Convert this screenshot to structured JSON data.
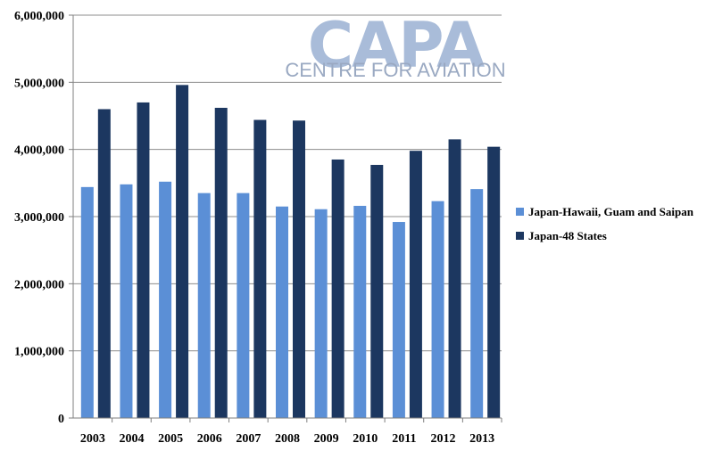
{
  "logo": {
    "main": "CAPA",
    "sub": "CENTRE FOR AVIATION",
    "main_color": "#a9bcd9",
    "sub_color": "#9aa9c2"
  },
  "colors": {
    "series_light": "#5b8fd6",
    "series_dark": "#1c3760",
    "axis": "#7f7f7f",
    "grid": "#8c8c8c"
  },
  "chart_data": {
    "type": "bar",
    "title": "",
    "xlabel": "",
    "ylabel": "",
    "ylim": [
      0,
      6000000
    ],
    "yticks": [
      0,
      1000000,
      2000000,
      3000000,
      4000000,
      5000000,
      6000000
    ],
    "ytick_labels": [
      "0",
      "1,000,000",
      "2,000,000",
      "3,000,000",
      "4,000,000",
      "5,000,000",
      "6,000,000"
    ],
    "grid": true,
    "legend_position": "right",
    "categories": [
      "2003",
      "2004",
      "2005",
      "2006",
      "2007",
      "2008",
      "2009",
      "2010",
      "2011",
      "2012",
      "2013"
    ],
    "series": [
      {
        "name": "Japan-Hawaii, Guam and Saipan",
        "color": "#5b8fd6",
        "values": [
          3440000,
          3480000,
          3520000,
          3350000,
          3350000,
          3150000,
          3110000,
          3160000,
          2920000,
          3230000,
          3410000
        ]
      },
      {
        "name": "Japan-48 States",
        "color": "#1c3760",
        "values": [
          4600000,
          4700000,
          4960000,
          4620000,
          4440000,
          4430000,
          3850000,
          3770000,
          3980000,
          4150000,
          4040000
        ]
      }
    ]
  }
}
